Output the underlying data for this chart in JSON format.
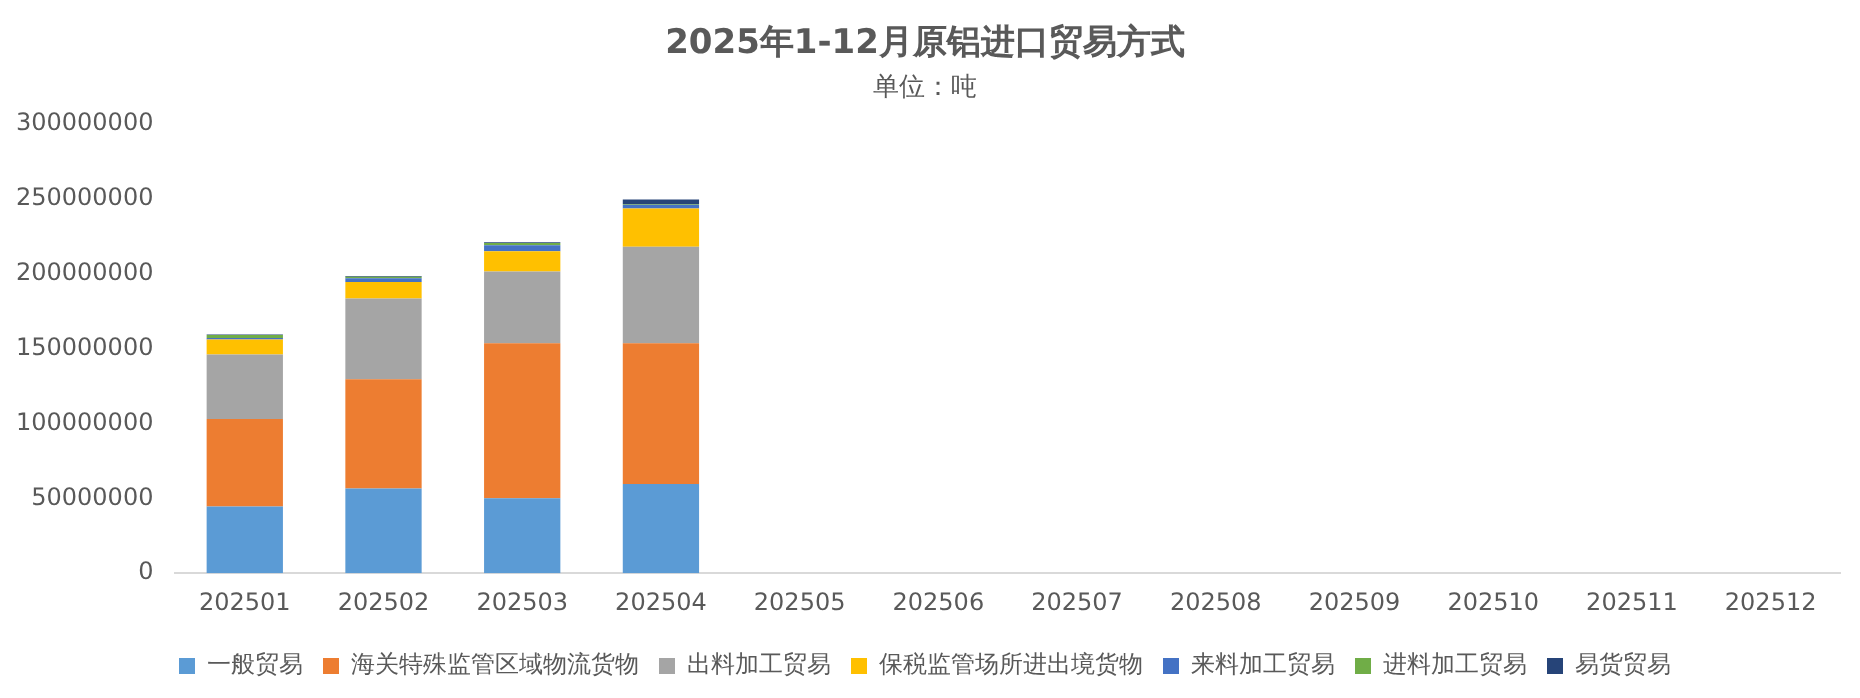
{
  "chart_data": {
    "type": "bar",
    "stacked": true,
    "title": "2025年1-12月原铝进口贸易方式",
    "subtitle": "单位：吨",
    "categories": [
      "202501",
      "202502",
      "202503",
      "202504",
      "202505",
      "202506",
      "202507",
      "202508",
      "202509",
      "202510",
      "202511",
      "202512"
    ],
    "series": [
      {
        "name": "一般贸易",
        "color": "#5b9bd5",
        "values": [
          44500000,
          56500000,
          50000000,
          59500000,
          null,
          null,
          null,
          null,
          null,
          null,
          null,
          null
        ]
      },
      {
        "name": "海关特殊监管区域物流货物",
        "color": "#ed7d31",
        "values": [
          58500000,
          73000000,
          103500000,
          94000000,
          null,
          null,
          null,
          null,
          null,
          null,
          null,
          null
        ]
      },
      {
        "name": "出料加工贸易",
        "color": "#a5a5a5",
        "values": [
          43000000,
          54000000,
          48000000,
          64500000,
          null,
          null,
          null,
          null,
          null,
          null,
          null,
          null
        ]
      },
      {
        "name": "保税监管场所进出境货物",
        "color": "#ffc000",
        "values": [
          10000000,
          11000000,
          13500000,
          25500000,
          null,
          null,
          null,
          null,
          null,
          null,
          null,
          null
        ]
      },
      {
        "name": "来料加工贸易",
        "color": "#4472c4",
        "values": [
          1000000,
          2500000,
          4000000,
          2500000,
          null,
          null,
          null,
          null,
          null,
          null,
          null,
          null
        ]
      },
      {
        "name": "进料加工贸易",
        "color": "#70ad47",
        "values": [
          2000000,
          1000000,
          1500000,
          500000,
          null,
          null,
          null,
          null,
          null,
          null,
          null,
          null
        ]
      },
      {
        "name": "易货贸易",
        "color": "#264478",
        "values": [
          500000,
          500000,
          500000,
          3000000,
          null,
          null,
          null,
          null,
          null,
          null,
          null,
          null
        ]
      }
    ],
    "ylim": [
      0,
      300000000
    ],
    "yticks": [
      0,
      50000000,
      100000000,
      150000000,
      200000000,
      250000000,
      300000000
    ],
    "grid": false,
    "legend": "bottom"
  }
}
